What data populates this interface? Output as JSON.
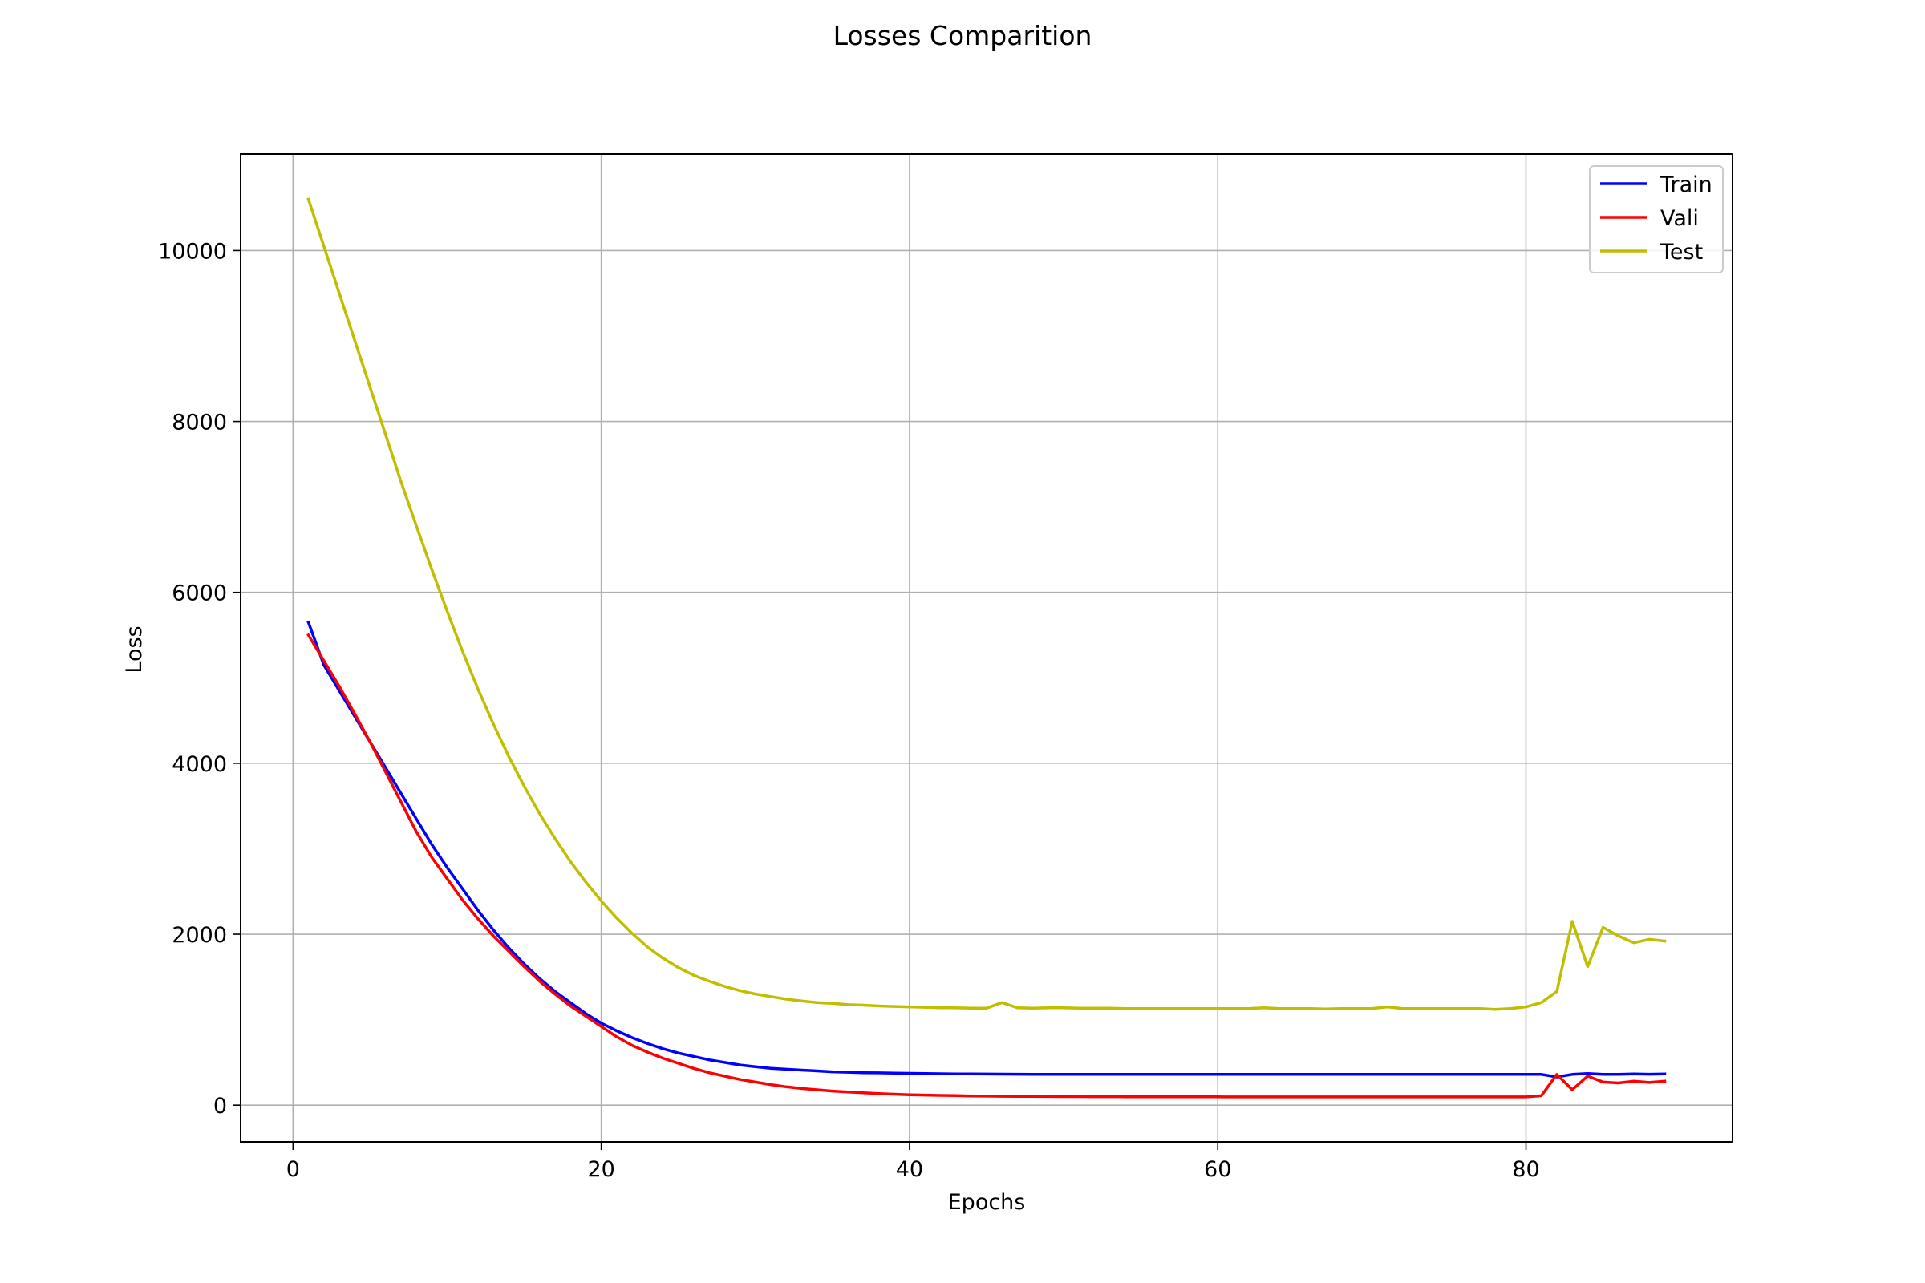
{
  "chart_data": {
    "type": "line",
    "title": "Losses Comparition",
    "xlabel": "Epochs",
    "ylabel": "Loss",
    "xlim": [
      -3.4,
      93.4
    ],
    "ylim": [
      -430,
      11130
    ],
    "xticks": [
      0,
      20,
      40,
      60,
      80
    ],
    "yticks": [
      0,
      2000,
      4000,
      6000,
      8000,
      10000
    ],
    "xtick_labels": [
      "0",
      "20",
      "40",
      "60",
      "80"
    ],
    "ytick_labels": [
      "0",
      "2000",
      "4000",
      "6000",
      "8000",
      "10000"
    ],
    "grid": true,
    "legend_position": "top-right",
    "x": [
      1,
      2,
      3,
      4,
      5,
      6,
      7,
      8,
      9,
      10,
      11,
      12,
      13,
      14,
      15,
      16,
      17,
      18,
      19,
      20,
      21,
      22,
      23,
      24,
      25,
      26,
      27,
      28,
      29,
      30,
      31,
      32,
      33,
      34,
      35,
      36,
      37,
      38,
      39,
      40,
      41,
      42,
      43,
      44,
      45,
      46,
      47,
      48,
      49,
      50,
      51,
      52,
      53,
      54,
      55,
      56,
      57,
      58,
      59,
      60,
      61,
      62,
      63,
      64,
      65,
      66,
      67,
      68,
      69,
      70,
      71,
      72,
      73,
      74,
      75,
      76,
      77,
      78,
      79,
      80,
      81,
      82,
      83,
      84,
      85,
      86,
      87,
      88,
      89
    ],
    "series": [
      {
        "name": "Train",
        "color": "#0000ff",
        "values": [
          5650,
          5150,
          4850,
          4550,
          4250,
          3950,
          3650,
          3350,
          3050,
          2780,
          2530,
          2280,
          2050,
          1840,
          1650,
          1480,
          1330,
          1200,
          1070,
          960,
          870,
          790,
          720,
          660,
          610,
          570,
          530,
          500,
          470,
          450,
          430,
          420,
          410,
          400,
          390,
          385,
          380,
          378,
          375,
          372,
          370,
          368,
          366,
          365,
          364,
          363,
          362,
          361,
          361,
          360,
          360,
          360,
          360,
          360,
          360,
          360,
          360,
          360,
          360,
          360,
          360,
          360,
          360,
          360,
          360,
          360,
          360,
          360,
          360,
          360,
          360,
          360,
          360,
          360,
          360,
          360,
          360,
          360,
          360,
          360,
          360,
          330,
          360,
          370,
          360,
          360,
          365,
          362,
          365
        ]
      },
      {
        "name": "Vali",
        "color": "#ff0000",
        "values": [
          5500,
          5200,
          4900,
          4580,
          4250,
          3900,
          3550,
          3200,
          2900,
          2650,
          2400,
          2180,
          1980,
          1800,
          1620,
          1450,
          1300,
          1160,
          1040,
          920,
          800,
          700,
          620,
          550,
          490,
          430,
          380,
          340,
          300,
          270,
          240,
          215,
          195,
          180,
          165,
          155,
          145,
          135,
          128,
          122,
          118,
          114,
          111,
          108,
          106,
          104,
          103,
          102,
          101,
          100,
          100,
          99,
          99,
          98,
          98,
          98,
          97,
          97,
          97,
          97,
          96,
          96,
          96,
          96,
          96,
          96,
          96,
          96,
          96,
          96,
          96,
          96,
          96,
          96,
          96,
          96,
          96,
          96,
          96,
          96,
          110,
          360,
          180,
          340,
          270,
          260,
          280,
          265,
          280
        ]
      },
      {
        "name": "Test",
        "color": "#bfbf00",
        "values": [
          10600,
          10050,
          9500,
          8950,
          8400,
          7850,
          7300,
          6780,
          6270,
          5780,
          5310,
          4870,
          4460,
          4080,
          3730,
          3410,
          3120,
          2850,
          2610,
          2390,
          2190,
          2010,
          1850,
          1720,
          1610,
          1520,
          1450,
          1390,
          1340,
          1300,
          1270,
          1240,
          1220,
          1200,
          1190,
          1175,
          1170,
          1160,
          1155,
          1150,
          1145,
          1140,
          1140,
          1135,
          1135,
          1200,
          1140,
          1135,
          1140,
          1140,
          1135,
          1135,
          1135,
          1130,
          1130,
          1130,
          1130,
          1130,
          1130,
          1130,
          1130,
          1130,
          1140,
          1130,
          1130,
          1130,
          1125,
          1130,
          1130,
          1130,
          1150,
          1130,
          1130,
          1130,
          1130,
          1130,
          1130,
          1120,
          1130,
          1150,
          1200,
          1330,
          2150,
          1620,
          2080,
          1980,
          1900,
          1940,
          1920
        ]
      }
    ]
  }
}
